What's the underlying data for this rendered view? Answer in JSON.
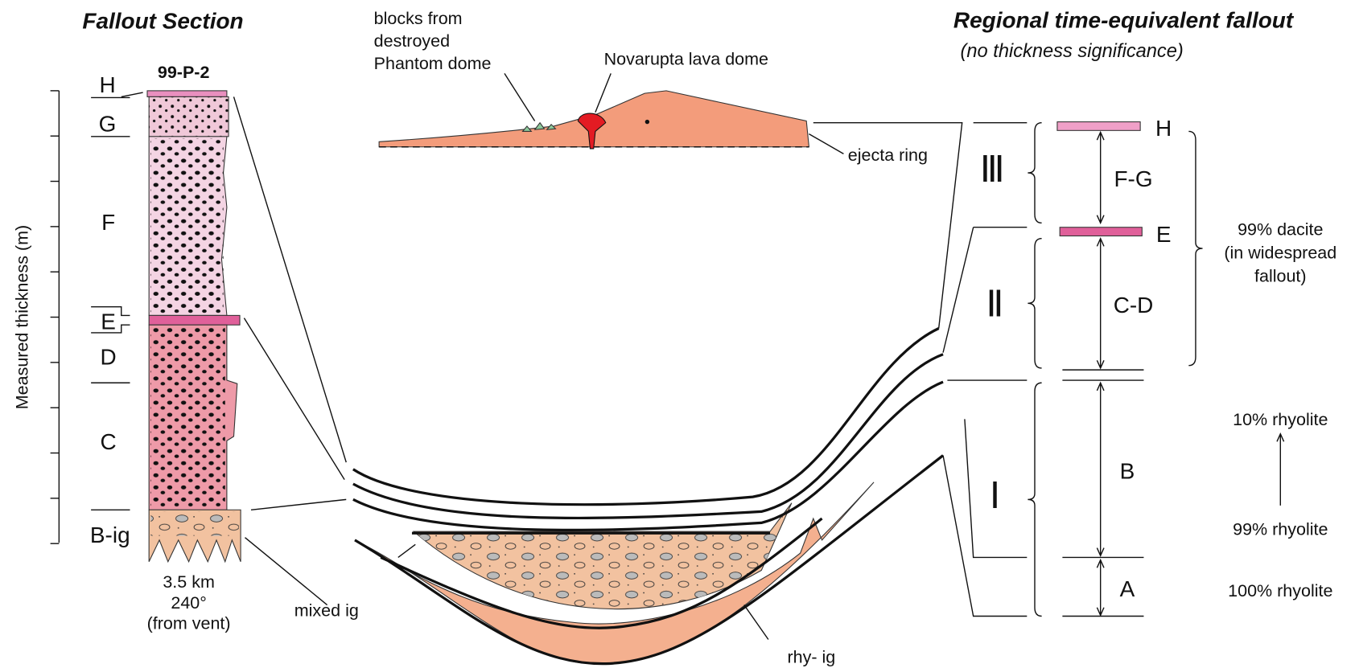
{
  "fallout_section": {
    "title": "Fallout Section",
    "section_id": "99-P-2",
    "axis_label": "Measured thickness (m)",
    "units": [
      "H",
      "G",
      "F",
      "E",
      "D",
      "C",
      "B-ig"
    ],
    "location": [
      "3.5 km",
      "240°",
      "(from vent)"
    ]
  },
  "cross_section": {
    "blocks": [
      "blocks from",
      "destroyed",
      "Phantom dome"
    ],
    "dome": "Novarupta lava dome",
    "ejecta": "ejecta ring",
    "mixed": "mixed ig",
    "rhy": "rhy- ig"
  },
  "regional": {
    "title": "Regional time-equivalent fallout",
    "subtitle": "(no thickness significance)",
    "episodes": [
      "Ⅲ",
      "Ⅱ",
      "Ⅰ"
    ],
    "layers": [
      "H",
      "F-G",
      "E",
      "C-D",
      "B",
      "A"
    ],
    "dacite": [
      "99% dacite",
      "(in widespread",
      "fallout)"
    ],
    "rhyolite": [
      "10% rhyolite",
      "99% rhyolite",
      "100% rhyolite"
    ]
  }
}
